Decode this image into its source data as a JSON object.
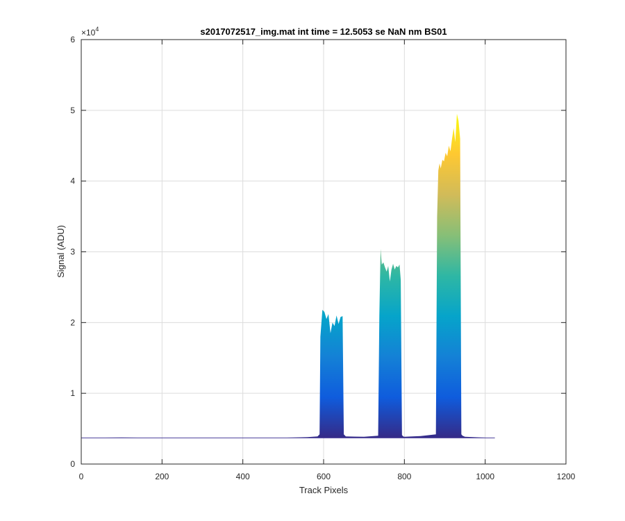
{
  "chart_data": {
    "type": "area",
    "title": "s2017072517_img.mat int time = 12.5053 se  NaN nm BS01",
    "xlabel": "Track Pixels",
    "ylabel": "Signal (ADU)",
    "xlim": [
      0,
      1200
    ],
    "ylim": [
      0,
      60000
    ],
    "x_ticks": [
      0,
      200,
      400,
      600,
      800,
      1000,
      1200
    ],
    "x_tick_labels": [
      "0",
      "200",
      "400",
      "600",
      "800",
      "1000",
      "1200"
    ],
    "y_ticks": [
      0,
      10000,
      20000,
      30000,
      40000,
      50000,
      60000
    ],
    "y_tick_labels": [
      "0",
      "1",
      "2",
      "3",
      "4",
      "5",
      "6"
    ],
    "y_exponent_base": "×10",
    "y_exponent_power": "4",
    "grid": true,
    "colormap": "parula",
    "colors": [
      "#352a87",
      "#0f5cdd",
      "#1481d6",
      "#06a4ca",
      "#2eb7a4",
      "#87bf77",
      "#d1bb59",
      "#fec832",
      "#f9fb0e"
    ],
    "baseline": 3700,
    "x": [
      0,
      100,
      200,
      300,
      400,
      500,
      560,
      585,
      590,
      592,
      597,
      602,
      607,
      612,
      617,
      622,
      627,
      632,
      637,
      642,
      647,
      650,
      655,
      700,
      735,
      738,
      741,
      744,
      748,
      752,
      756,
      760,
      764,
      768,
      772,
      776,
      780,
      784,
      788,
      791,
      794,
      797,
      800,
      840,
      878,
      881,
      884,
      887,
      890,
      894,
      898,
      902,
      906,
      910,
      914,
      918,
      922,
      926,
      930,
      934,
      938,
      941,
      944,
      950,
      990,
      1024
    ],
    "y": [
      3700,
      3750,
      3700,
      3700,
      3700,
      3720,
      3800,
      3900,
      4200,
      18000,
      21800,
      21500,
      20500,
      21200,
      18500,
      20000,
      19500,
      21000,
      19800,
      20800,
      20900,
      4200,
      3900,
      3850,
      4000,
      21000,
      30400,
      28200,
      28500,
      27800,
      27200,
      28000,
      25800,
      27500,
      28300,
      27500,
      28000,
      27800,
      28200,
      26000,
      4100,
      3900,
      3850,
      3950,
      4200,
      35000,
      41500,
      42500,
      41800,
      43000,
      42800,
      44000,
      43500,
      45000,
      44200,
      46000,
      47500,
      45500,
      49500,
      48500,
      46000,
      4200,
      4000,
      3850,
      3750,
      3700
    ]
  }
}
